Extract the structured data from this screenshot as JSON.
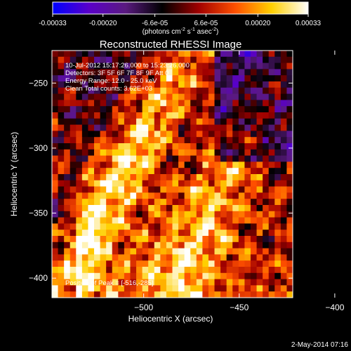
{
  "chart_data": {
    "type": "heatmap",
    "title": "Reconstructed RHESSI Image",
    "xlabel": "Heliocentric X (arcsec)",
    "ylabel": "Heliocentric Y (arcsec)",
    "xlim": [
      -548,
      -422
    ],
    "ylim": [
      -415,
      -225
    ],
    "x_ticks": [
      -500,
      -450,
      -400
    ],
    "y_ticks": [
      -250,
      -300,
      -350,
      -400
    ],
    "colorbar": {
      "range": [
        -0.00033,
        0.00033
      ],
      "tick_labels": [
        "-0.00033",
        "-0.00020",
        "-6.6e-05",
        "6.6e-05",
        "0.00020",
        "0.00033"
      ],
      "tick_values": [
        -0.00033,
        -0.0002,
        -6.6e-05,
        6.6e-05,
        0.0002,
        0.00033
      ],
      "unit_prefix": "(photons cm",
      "unit_exp1": "-2",
      "unit_mid": " s",
      "unit_exp2": "-1",
      "unit_mid2": " asec",
      "unit_exp3": "-2",
      "unit_suffix": ")",
      "colors": [
        "#0000ff",
        "#5a00c8",
        "#5a1a80",
        "#000000",
        "#a00000",
        "#ff5000",
        "#ffd000",
        "#ffffff"
      ]
    },
    "annotations": [
      "10-Jul-2012 15:17:26.000 to 15:23:26.000",
      "Detectors: 3F 5F 6F 7F 8F 9F  Att 0",
      "Energy Range: 12.0 - 25.0 keV",
      "Clean     Total counts: 3.62E+03"
    ],
    "peak_label": "Position of Peak = [-516,-285]",
    "grid": false
  },
  "footer": {
    "timestamp": "2-May-2014 07:16"
  }
}
